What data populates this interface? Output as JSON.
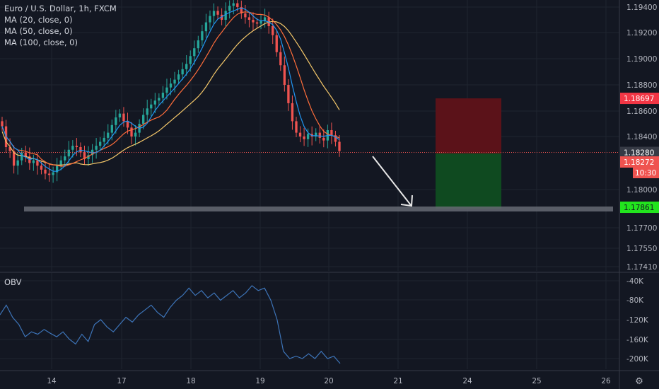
{
  "legend": {
    "title": "Euro / U.S. Dollar, 1h, FXCM",
    "ma1": "MA (20, close, 0)",
    "ma2": "MA (50, close, 0)",
    "ma3": "MA (100, close, 0)"
  },
  "obv_label": "OBV",
  "colors": {
    "background": "#131722",
    "grid": "#1f2430",
    "up": "#26a69a",
    "down": "#ef5350",
    "ma20": "#2196f3",
    "ma50": "#ff6d3a",
    "ma100": "#f5c86a",
    "obv": "#3d74b8",
    "stop_zone": "#5b1219",
    "target_zone": "#0f4a20",
    "support": "#666a73"
  },
  "chart_data": [
    {
      "type": "candlestick",
      "title": "Euro / U.S. Dollar, 1h, FXCM",
      "ylim": [
        1.1735,
        1.1955
      ],
      "y_ticks": [
        "1.19400",
        "1.19200",
        "1.19000",
        "1.18800",
        "1.18600",
        "1.18400",
        "1.18000",
        "1.17700",
        "1.17550",
        "1.17410"
      ],
      "y_tick_values": [
        1.194,
        1.192,
        1.19,
        1.188,
        1.186,
        1.184,
        1.18,
        1.177,
        1.1755,
        1.1741
      ],
      "x_ticks": [
        "14",
        "17",
        "18",
        "19",
        "20",
        "21",
        "24",
        "25",
        "26"
      ],
      "grid": true,
      "indicators": [
        "MA (20, close, 0)",
        "MA (50, close, 0)",
        "MA (100, close, 0)"
      ],
      "price_levels": {
        "stop_loss": "1.18697",
        "last_price": "1.18280",
        "entry": "1.18272",
        "countdown": "10:30",
        "target": "1.17861"
      },
      "position": {
        "stop_loss": 1.18697,
        "entry": 1.18272,
        "target": 1.17861
      },
      "support_level": 1.1785,
      "close_series": [
        1.1848,
        1.1832,
        1.1829,
        1.1818,
        1.1822,
        1.1828,
        1.1825,
        1.182,
        1.1822,
        1.1818,
        1.1815,
        1.1812,
        1.1811,
        1.1813,
        1.1818,
        1.1822,
        1.1825,
        1.183,
        1.1833,
        1.1832,
        1.1828,
        1.1823,
        1.1826,
        1.183,
        1.1833,
        1.1836,
        1.1839,
        1.1843,
        1.1849,
        1.1855,
        1.1858,
        1.1852,
        1.1847,
        1.184,
        1.1843,
        1.185,
        1.1857,
        1.1862,
        1.1865,
        1.1868,
        1.187,
        1.1874,
        1.1878,
        1.1881,
        1.1884,
        1.1888,
        1.1892,
        1.1896,
        1.1902,
        1.1908,
        1.1914,
        1.1921,
        1.1928,
        1.1933,
        1.1937,
        1.1934,
        1.193,
        1.1937,
        1.1941,
        1.1943,
        1.194,
        1.1935,
        1.1932,
        1.193,
        1.1928,
        1.1927,
        1.1929,
        1.1932,
        1.1925,
        1.1918,
        1.1905,
        1.1895,
        1.188,
        1.1866,
        1.1852,
        1.1843,
        1.184,
        1.1838,
        1.1842,
        1.184,
        1.1843,
        1.1839,
        1.1837,
        1.1845,
        1.1841,
        1.1836,
        1.1829
      ]
    },
    {
      "type": "line",
      "title": "OBV",
      "y_ticks": [
        "-40K",
        "-80K",
        "-120K",
        "-160K",
        "-200K"
      ],
      "y_tick_values": [
        -40,
        -80,
        -120,
        -160,
        -200
      ],
      "ylim": [
        -222,
        -30
      ],
      "values": [
        -110,
        -90,
        -115,
        -130,
        -155,
        -145,
        -150,
        -140,
        -148,
        -155,
        -145,
        -160,
        -170,
        -150,
        -165,
        -130,
        -120,
        -135,
        -145,
        -130,
        -115,
        -125,
        -110,
        -100,
        -90,
        -105,
        -115,
        -95,
        -80,
        -70,
        -55,
        -70,
        -60,
        -75,
        -65,
        -80,
        -70,
        -60,
        -75,
        -65,
        -50,
        -60,
        -55,
        -80,
        -120,
        -185,
        -200,
        -195,
        -200,
        -190,
        -200,
        -185,
        -200,
        -195,
        -210
      ]
    }
  ]
}
